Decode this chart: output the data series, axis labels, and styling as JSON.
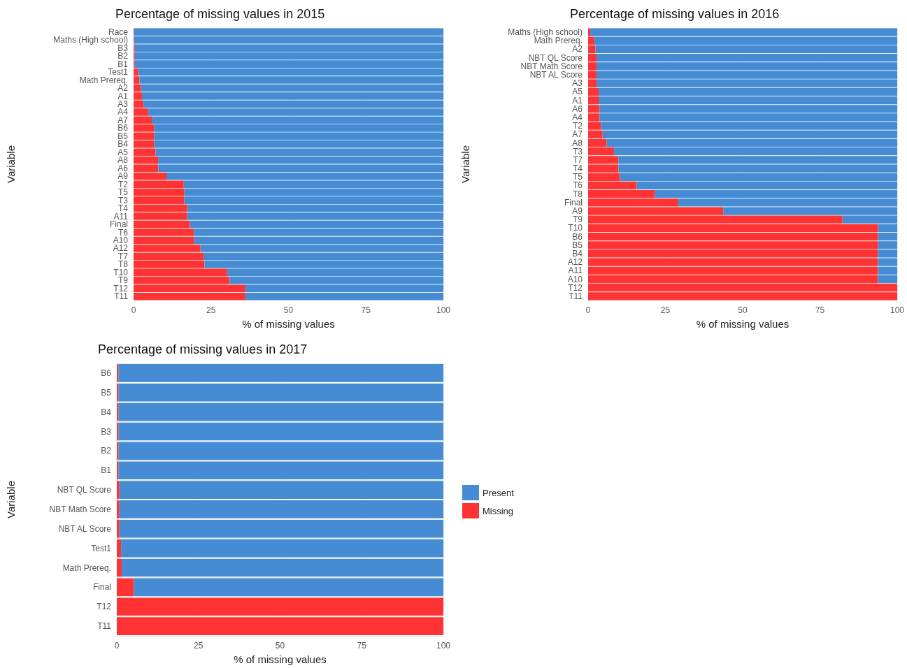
{
  "chart_data": [
    {
      "type": "bar",
      "orientation": "horizontal",
      "stacked": true,
      "title": "Percentage of missing values in 2015",
      "xlabel": "% of missing values",
      "ylabel": "Variable",
      "categories": [
        "Race",
        "Maths (High school)",
        "B3",
        "B2",
        "B1",
        "Test1",
        "Math Prereq.",
        "A2",
        "A1",
        "A3",
        "A4",
        "A7",
        "B6",
        "B5",
        "B4",
        "A5",
        "A8",
        "A6",
        "A9",
        "T2",
        "T5",
        "T3",
        "T4",
        "A11",
        "Final",
        "T6",
        "A10",
        "A12",
        "T7",
        "T8",
        "T10",
        "T9",
        "T12",
        "T11"
      ],
      "series": [
        {
          "color": "#ff3333",
          "values": [
            0.2,
            0.2,
            0.4,
            0.4,
            0.4,
            1.5,
            1.9,
            2.4,
            2.7,
            3.2,
            4.7,
            5.9,
            6.6,
            6.6,
            6.6,
            7.1,
            7.9,
            8.0,
            10.6,
            16.2,
            16.4,
            16.4,
            17.3,
            17.3,
            18.2,
            19.4,
            19.6,
            21.6,
            22.6,
            22.9,
            30.2,
            31.0,
            36.1,
            36.1
          ]
        },
        {
          "color": "#458cd5",
          "values": [
            99.8,
            99.8,
            99.6,
            99.6,
            99.6,
            98.5,
            98.1,
            97.6,
            97.3,
            96.8,
            95.3,
            94.1,
            93.4,
            93.4,
            93.4,
            92.9,
            92.1,
            92.0,
            89.4,
            83.8,
            83.6,
            83.6,
            82.7,
            82.7,
            81.8,
            80.6,
            80.4,
            78.4,
            77.4,
            77.1,
            69.8,
            69.0,
            63.9,
            63.9
          ]
        }
      ],
      "xlim": [
        0,
        100
      ],
      "xticks": [
        0,
        25,
        50,
        75,
        100
      ],
      "grid": true,
      "legend": false
    },
    {
      "type": "bar",
      "orientation": "horizontal",
      "stacked": true,
      "title": "Percentage of missing values in 2016",
      "xlabel": "% of missing values",
      "ylabel": "Variable",
      "categories": [
        "Maths (High school)",
        "Math Prereq.",
        "A2",
        "NBT QL Score",
        "NBT Math Score",
        "NBT AL Score",
        "A3",
        "A5",
        "A1",
        "A6",
        "A4",
        "T2",
        "A7",
        "A8",
        "T3",
        "T7",
        "T4",
        "T5",
        "T6",
        "T8",
        "Final",
        "A9",
        "T9",
        "T10",
        "B6",
        "B5",
        "B4",
        "A12",
        "A11",
        "A10",
        "T12",
        "T11"
      ],
      "series": [
        {
          "color": "#ff3333",
          "values": [
            0.7,
            2.0,
            2.4,
            2.7,
            2.7,
            2.7,
            2.7,
            3.4,
            3.4,
            3.7,
            3.7,
            4.2,
            4.7,
            6.0,
            8.4,
            9.8,
            9.8,
            10.3,
            15.7,
            21.6,
            29.2,
            43.7,
            82.3,
            93.8,
            93.8,
            93.8,
            93.8,
            93.8,
            93.8,
            93.8,
            100,
            100
          ]
        },
        {
          "color": "#458cd5",
          "values": [
            99.3,
            98.0,
            97.6,
            97.3,
            97.3,
            97.3,
            97.3,
            96.6,
            96.6,
            96.3,
            96.3,
            95.8,
            95.3,
            94.0,
            91.6,
            90.2,
            90.2,
            89.7,
            84.3,
            78.4,
            70.8,
            56.3,
            17.7,
            6.2,
            6.2,
            6.2,
            6.2,
            6.2,
            6.2,
            6.2,
            0,
            0
          ]
        }
      ],
      "xlim": [
        0,
        100
      ],
      "xticks": [
        0,
        25,
        50,
        75,
        100
      ],
      "grid": true,
      "legend": false
    },
    {
      "type": "bar",
      "orientation": "horizontal",
      "stacked": true,
      "title": "Percentage of missing values in 2017",
      "xlabel": "% of missing values",
      "ylabel": "Variable",
      "categories": [
        "B6",
        "B5",
        "B4",
        "B3",
        "B2",
        "B1",
        "NBT QL Score",
        "NBT Math Score",
        "NBT AL Score",
        "Test1",
        "Math Prereq.",
        "Final",
        "T12",
        "T11"
      ],
      "series": [
        {
          "name": "Missing",
          "color": "#ff3333",
          "values": [
            0.5,
            0.5,
            0.5,
            0.5,
            0.5,
            0.5,
            0.8,
            0.8,
            0.8,
            1.3,
            1.5,
            5.2,
            100,
            100
          ]
        },
        {
          "name": "Present",
          "color": "#458cd5",
          "values": [
            99.5,
            99.5,
            99.5,
            99.5,
            99.5,
            99.5,
            99.2,
            99.2,
            99.2,
            98.7,
            98.5,
            94.8,
            0,
            0
          ]
        }
      ],
      "xlim": [
        0,
        100
      ],
      "xticks": [
        0,
        25,
        50,
        75,
        100
      ],
      "grid": true,
      "legend": "right"
    }
  ]
}
